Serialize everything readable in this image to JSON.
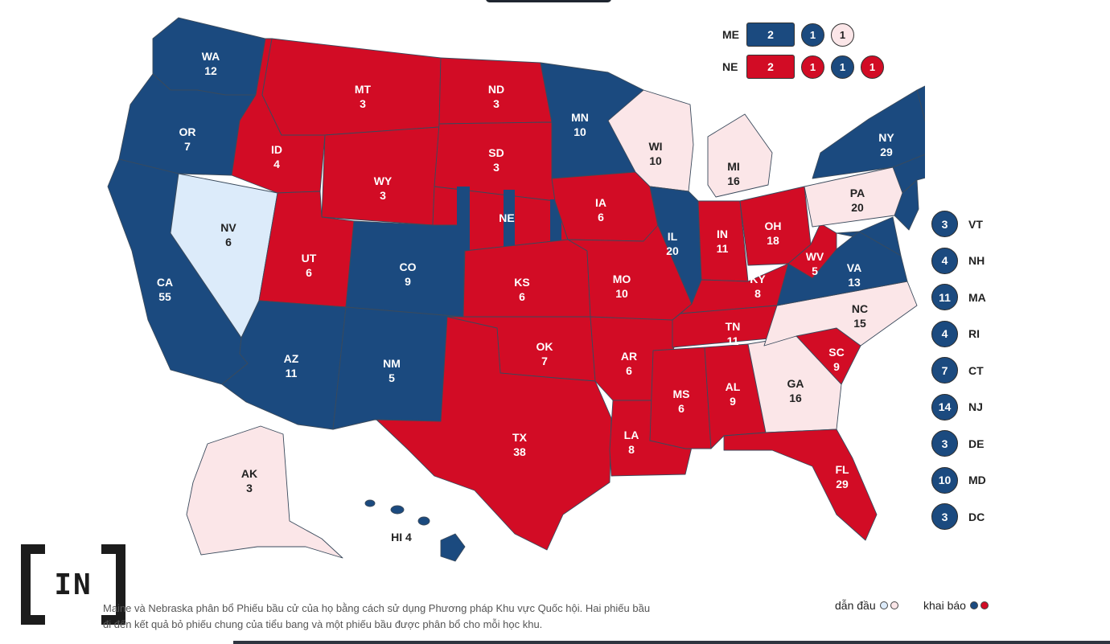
{
  "colors": {
    "dem_called": "#1b4a7f",
    "rep_called": "#d20c25",
    "dem_leading": "#dcebfa",
    "rep_leading": "#fbe6e8",
    "border": "#3a4a5c"
  },
  "states": [
    {
      "code": "WA",
      "votes": "12",
      "status": "dem_called"
    },
    {
      "code": "OR",
      "votes": "7",
      "status": "dem_called"
    },
    {
      "code": "CA",
      "votes": "55",
      "status": "dem_called"
    },
    {
      "code": "NV",
      "votes": "6",
      "status": "dem_leading"
    },
    {
      "code": "ID",
      "votes": "4",
      "status": "rep_called"
    },
    {
      "code": "MT",
      "votes": "3",
      "status": "rep_called"
    },
    {
      "code": "WY",
      "votes": "3",
      "status": "rep_called"
    },
    {
      "code": "UT",
      "votes": "6",
      "status": "rep_called"
    },
    {
      "code": "CO",
      "votes": "9",
      "status": "dem_called"
    },
    {
      "code": "AZ",
      "votes": "11",
      "status": "dem_called"
    },
    {
      "code": "NM",
      "votes": "5",
      "status": "dem_called"
    },
    {
      "code": "ND",
      "votes": "3",
      "status": "rep_called"
    },
    {
      "code": "SD",
      "votes": "3",
      "status": "rep_called"
    },
    {
      "code": "NE",
      "votes": "",
      "status": "rep_called"
    },
    {
      "code": "KS",
      "votes": "6",
      "status": "rep_called"
    },
    {
      "code": "OK",
      "votes": "7",
      "status": "rep_called"
    },
    {
      "code": "TX",
      "votes": "38",
      "status": "rep_called"
    },
    {
      "code": "MN",
      "votes": "10",
      "status": "dem_called"
    },
    {
      "code": "IA",
      "votes": "6",
      "status": "rep_called"
    },
    {
      "code": "MO",
      "votes": "10",
      "status": "rep_called"
    },
    {
      "code": "AR",
      "votes": "6",
      "status": "rep_called"
    },
    {
      "code": "LA",
      "votes": "8",
      "status": "rep_called"
    },
    {
      "code": "WI",
      "votes": "10",
      "status": "rep_leading"
    },
    {
      "code": "IL",
      "votes": "20",
      "status": "dem_called"
    },
    {
      "code": "MI",
      "votes": "16",
      "status": "rep_leading"
    },
    {
      "code": "IN",
      "votes": "11",
      "status": "rep_called"
    },
    {
      "code": "OH",
      "votes": "18",
      "status": "rep_called"
    },
    {
      "code": "KY",
      "votes": "8",
      "status": "rep_called"
    },
    {
      "code": "TN",
      "votes": "11",
      "status": "rep_called"
    },
    {
      "code": "MS",
      "votes": "6",
      "status": "rep_called"
    },
    {
      "code": "AL",
      "votes": "9",
      "status": "rep_called"
    },
    {
      "code": "GA",
      "votes": "16",
      "status": "rep_leading"
    },
    {
      "code": "FL",
      "votes": "29",
      "status": "rep_called"
    },
    {
      "code": "SC",
      "votes": "9",
      "status": "rep_called"
    },
    {
      "code": "NC",
      "votes": "15",
      "status": "rep_leading"
    },
    {
      "code": "VA",
      "votes": "13",
      "status": "dem_called"
    },
    {
      "code": "WV",
      "votes": "5",
      "status": "rep_called"
    },
    {
      "code": "PA",
      "votes": "20",
      "status": "rep_leading"
    },
    {
      "code": "NY",
      "votes": "29",
      "status": "dem_called"
    },
    {
      "code": "ME",
      "votes": "",
      "status": "dem_called"
    },
    {
      "code": "AK",
      "votes": "3",
      "status": "rep_leading"
    },
    {
      "code": "HI",
      "votes": "4",
      "status": "dem_called"
    }
  ],
  "split_states": [
    {
      "name": "ME",
      "statewide": {
        "votes": "2",
        "status": "dem_called"
      },
      "districts": [
        {
          "votes": "1",
          "status": "dem_called"
        },
        {
          "votes": "1",
          "status": "rep_leading"
        }
      ]
    },
    {
      "name": "NE",
      "statewide": {
        "votes": "2",
        "status": "rep_called"
      },
      "districts": [
        {
          "votes": "1",
          "status": "rep_called"
        },
        {
          "votes": "1",
          "status": "dem_called"
        },
        {
          "votes": "1",
          "status": "rep_called"
        }
      ]
    }
  ],
  "small_states": [
    {
      "name": "VT",
      "votes": "3",
      "status": "dem_called"
    },
    {
      "name": "NH",
      "votes": "4",
      "status": "dem_called"
    },
    {
      "name": "MA",
      "votes": "11",
      "status": "dem_called"
    },
    {
      "name": "RI",
      "votes": "4",
      "status": "dem_called"
    },
    {
      "name": "CT",
      "votes": "7",
      "status": "dem_called"
    },
    {
      "name": "NJ",
      "votes": "14",
      "status": "dem_called"
    },
    {
      "name": "DE",
      "votes": "3",
      "status": "dem_called"
    },
    {
      "name": "MD",
      "votes": "10",
      "status": "dem_called"
    },
    {
      "name": "DC",
      "votes": "3",
      "status": "dem_called"
    }
  ],
  "footnote": {
    "line1": "Maine và Nebraska phân bổ Phiếu bầu cử của họ bằng cách sử dụng Phương pháp Khu vực Quốc hội. Hai phiếu bầu",
    "line2": "đi đến kết quả bỏ phiếu chung của tiểu bang và một phiếu bầu được phân bổ cho mỗi học khu."
  },
  "legend": {
    "leading_label": "dẫn đầu",
    "called_label": "khai báo"
  },
  "logo": {
    "text": "IN"
  }
}
